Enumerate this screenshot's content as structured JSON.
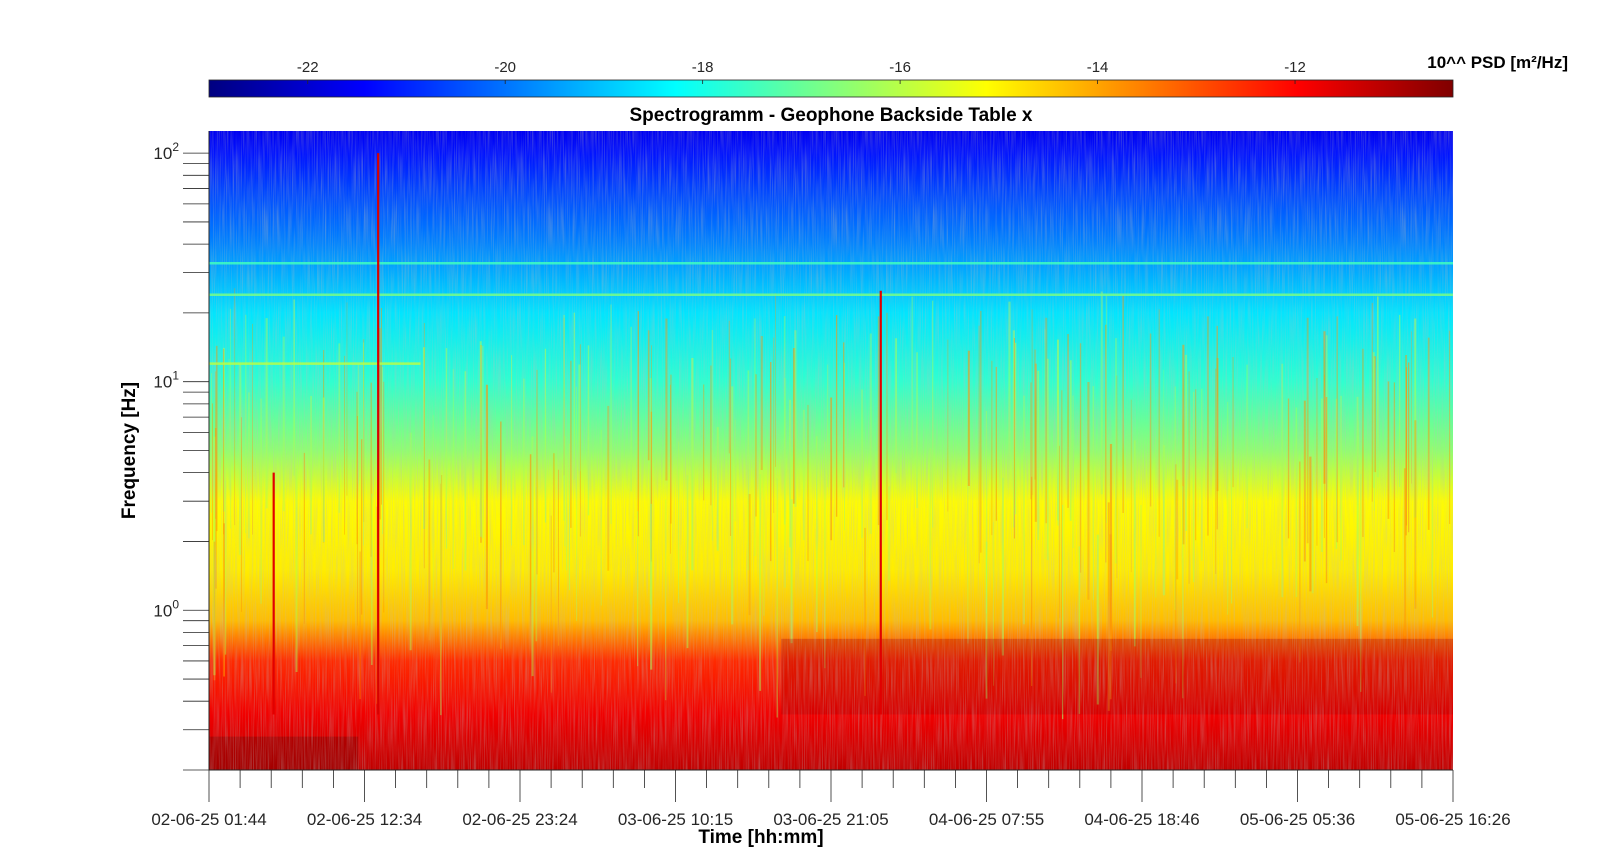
{
  "chart_data": {
    "type": "heatmap",
    "title": "Spectrogramm - Geophone Backside Table x",
    "xlabel": "Time [hh:mm]",
    "ylabel": "Frequency [Hz]",
    "y_scale": "log",
    "ylim": [
      0.2,
      125
    ],
    "x_tick_labels": [
      "02-06-25 01:44",
      "02-06-25 12:34",
      "02-06-25 23:24",
      "03-06-25 10:15",
      "03-06-25 21:05",
      "04-06-25 07:55",
      "04-06-25 18:46",
      "05-06-25 05:36",
      "05-06-25 16:26"
    ],
    "y_ticks": [
      {
        "value": 1,
        "base": "10",
        "exp": "0"
      },
      {
        "value": 10,
        "base": "10",
        "exp": "1"
      },
      {
        "value": 100,
        "base": "10",
        "exp": "2"
      }
    ],
    "colorbar": {
      "label": "10^^ PSD [m²/Hz]",
      "colormap": "jet",
      "clim": [
        -23,
        -10.4
      ],
      "tick_values": [
        -22,
        -20,
        -18,
        -16,
        -14,
        -12
      ],
      "tick_labels": [
        "-22",
        "-20",
        "-18",
        "-16",
        "-14",
        "-12"
      ]
    },
    "psd_profile_by_frequency": [
      {
        "freq_hz": 0.2,
        "log10_psd": -11.2
      },
      {
        "freq_hz": 0.35,
        "log10_psd": -11.8
      },
      {
        "freq_hz": 0.6,
        "log10_psd": -12.5
      },
      {
        "freq_hz": 0.9,
        "log10_psd": -14.3
      },
      {
        "freq_hz": 1.5,
        "log10_psd": -14.9
      },
      {
        "freq_hz": 3,
        "log10_psd": -15.1
      },
      {
        "freq_hz": 5,
        "log10_psd": -16.5
      },
      {
        "freq_hz": 10,
        "log10_psd": -17.7
      },
      {
        "freq_hz": 20,
        "log10_psd": -18.6
      },
      {
        "freq_hz": 40,
        "log10_psd": -19.8
      },
      {
        "freq_hz": 70,
        "log10_psd": -20.6
      },
      {
        "freq_hz": 100,
        "log10_psd": -21.2
      },
      {
        "freq_hz": 125,
        "log10_psd": -21.6
      }
    ],
    "transient_events": [
      {
        "time_fraction": 0.052,
        "top_freq_hz": 4,
        "log10_psd": -11.6
      },
      {
        "time_fraction": 0.136,
        "top_freq_hz": 100,
        "log10_psd": -11.5
      },
      {
        "time_fraction": 0.54,
        "top_freq_hz": 25,
        "log10_psd": -11.6
      }
    ],
    "horizontal_lines": [
      {
        "freq_hz": 12,
        "time_range": [
          0,
          0.17
        ],
        "log10_psd": -16.0
      },
      {
        "freq_hz": 24,
        "time_range": [
          0,
          1
        ],
        "log10_psd": -16.8
      },
      {
        "freq_hz": 33,
        "time_range": [
          0,
          1
        ],
        "log10_psd": -17.5
      }
    ]
  }
}
